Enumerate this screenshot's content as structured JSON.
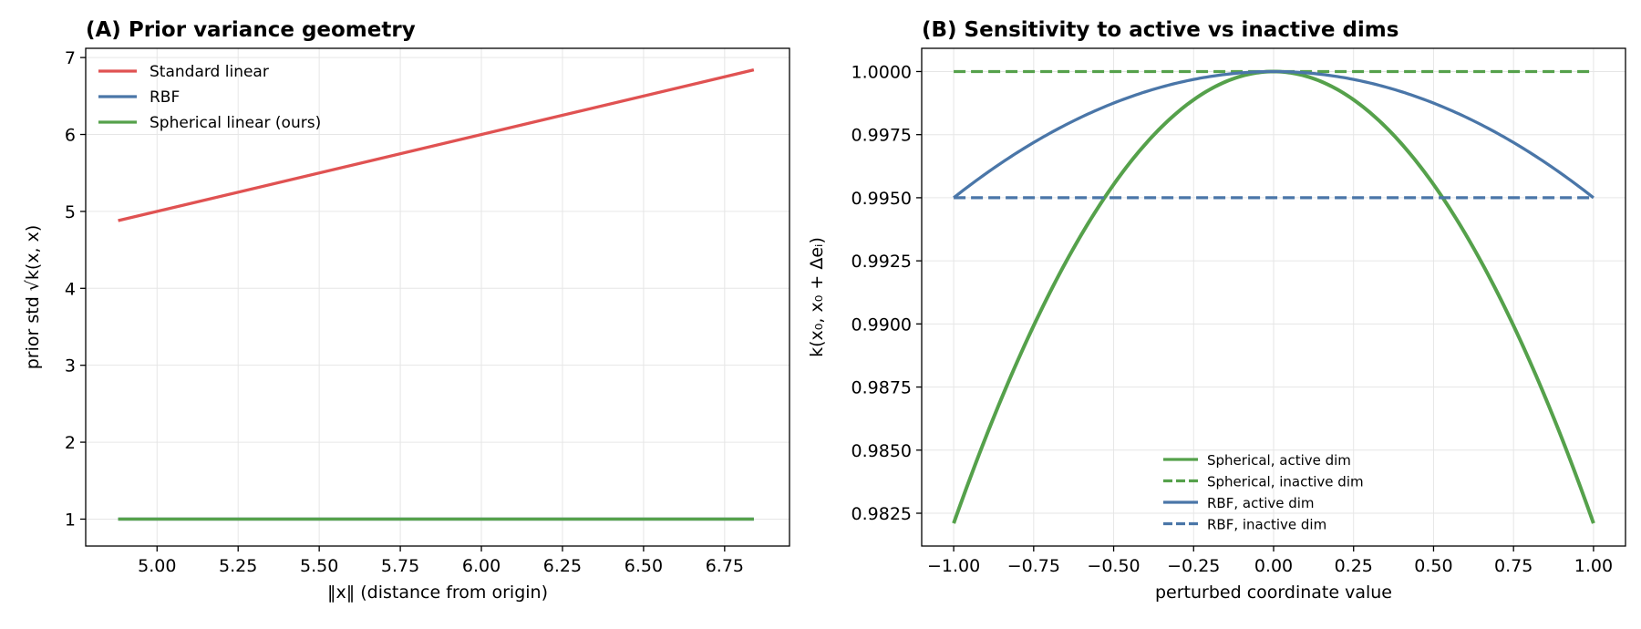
{
  "colors": {
    "red": "#e05252",
    "blue": "#4a76a8",
    "green": "#55a14b"
  },
  "chart_data": [
    {
      "type": "line",
      "title": "(A) Prior variance geometry",
      "xlabel": "‖x‖  (distance from origin)",
      "ylabel": "prior std  √k(x, x)",
      "xlim": [
        4.78,
        6.95
      ],
      "ylim": [
        0.65,
        7.12
      ],
      "xticks": [
        5.0,
        5.25,
        5.5,
        5.75,
        6.0,
        6.25,
        6.5,
        6.75
      ],
      "xtick_labels": [
        "5.00",
        "5.25",
        "5.50",
        "5.75",
        "6.00",
        "6.25",
        "6.50",
        "6.75"
      ],
      "yticks": [
        1,
        2,
        3,
        4,
        5,
        6,
        7
      ],
      "ytick_labels": [
        "1",
        "2",
        "3",
        "4",
        "5",
        "6",
        "7"
      ],
      "grid": true,
      "legend_position": "top-left",
      "series": [
        {
          "name": "Standard linear",
          "color": "#e05252",
          "style": "solid",
          "x": [
            4.88,
            6.84
          ],
          "y": [
            4.88,
            6.84
          ]
        },
        {
          "name": "RBF",
          "color": "#4a76a8",
          "style": "solid",
          "x": [
            4.88,
            6.84
          ],
          "y": [
            1.0,
            1.0
          ]
        },
        {
          "name": "Spherical linear (ours)",
          "color": "#55a14b",
          "style": "solid",
          "x": [
            4.88,
            6.84
          ],
          "y": [
            1.0,
            1.0
          ]
        }
      ]
    },
    {
      "type": "line",
      "title": "(B) Sensitivity to active vs inactive dims",
      "xlabel": "perturbed coordinate value",
      "ylabel": "k(x₀, x₀ + Δeᵢ)",
      "xlim": [
        -1.1,
        1.1
      ],
      "ylim": [
        0.9812,
        1.00092
      ],
      "xticks": [
        -1.0,
        -0.75,
        -0.5,
        -0.25,
        0.0,
        0.25,
        0.5,
        0.75,
        1.0
      ],
      "xtick_labels": [
        "−1.00",
        "−0.75",
        "−0.50",
        "−0.25",
        "0.00",
        "0.25",
        "0.50",
        "0.75",
        "1.00"
      ],
      "yticks": [
        0.9825,
        0.985,
        0.9875,
        0.99,
        0.9925,
        0.995,
        0.9975,
        1.0
      ],
      "ytick_labels": [
        "0.9825",
        "0.9850",
        "0.9875",
        "0.9900",
        "0.9925",
        "0.9950",
        "0.9975",
        "1.0000"
      ],
      "grid": true,
      "legend_position": "bottom-center",
      "series": [
        {
          "name": "Spherical, active dim",
          "color": "#55a14b",
          "style": "solid",
          "x": [
            -1.0,
            -0.75,
            -0.5,
            -0.25,
            0.0,
            0.25,
            0.5,
            0.75,
            1.0
          ],
          "y": [
            0.9821,
            0.9899,
            0.9955,
            0.9989,
            1.0,
            0.9989,
            0.9955,
            0.9899,
            0.9821
          ]
        },
        {
          "name": "Spherical, inactive dim",
          "color": "#55a14b",
          "style": "dashed",
          "x": [
            -1.0,
            1.0
          ],
          "y": [
            1.0,
            1.0
          ]
        },
        {
          "name": "RBF, active dim",
          "color": "#4a76a8",
          "style": "solid",
          "x": [
            -1.0,
            -0.75,
            -0.5,
            -0.25,
            0.0,
            0.25,
            0.5,
            0.75,
            1.0
          ],
          "y": [
            0.995,
            0.9972,
            0.9988,
            0.9997,
            1.0,
            0.9997,
            0.9988,
            0.9972,
            0.995
          ]
        },
        {
          "name": "RBF, inactive dim",
          "color": "#4a76a8",
          "style": "dashed",
          "x": [
            -1.0,
            1.0
          ],
          "y": [
            0.995,
            0.995
          ]
        }
      ]
    }
  ]
}
